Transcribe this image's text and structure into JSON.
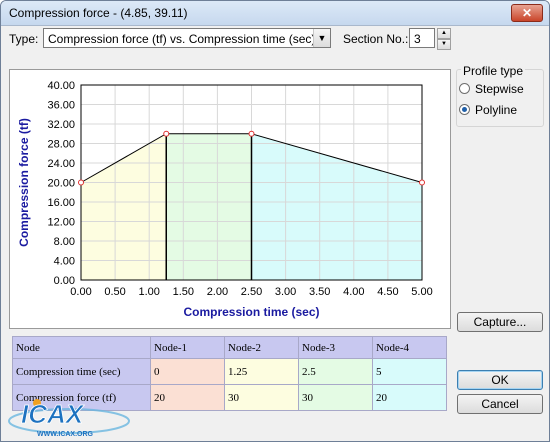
{
  "window": {
    "title": "Compression force - (4.85, 39.11)",
    "close_icon": "close-icon"
  },
  "toolbar": {
    "type_label": "Type:",
    "type_value": "Compression force (tf) vs. Compression time (sec)",
    "section_label": "Section No.:",
    "section_value": "3"
  },
  "profile": {
    "title": "Profile type",
    "options": [
      "Stepwise",
      "Polyline"
    ],
    "selected": "Polyline"
  },
  "buttons": {
    "capture": "Capture...",
    "ok": "OK",
    "cancel": "Cancel"
  },
  "table": {
    "headers": [
      "Node",
      "Node-1",
      "Node-2",
      "Node-3",
      "Node-4"
    ],
    "rows": [
      {
        "label": "Compression time (sec)",
        "values": [
          "0",
          "1.25",
          "2.5",
          "5"
        ]
      },
      {
        "label": "Compression force (tf)",
        "values": [
          "20",
          "30",
          "30",
          "20"
        ]
      }
    ]
  },
  "logo": {
    "text": "ICAX",
    "subtext": "WWW.ICAX.ORG"
  },
  "chart_data": {
    "type": "line",
    "xlabel": "Compression time (sec)",
    "ylabel": "Compression force (tf)",
    "xlim": [
      0,
      5
    ],
    "ylim": [
      0,
      40
    ],
    "xticks": [
      "0.00",
      "0.50",
      "1.00",
      "1.50",
      "2.00",
      "2.50",
      "3.00",
      "3.50",
      "4.00",
      "4.50",
      "5.00"
    ],
    "yticks": [
      "0.00",
      "4.00",
      "8.00",
      "12.00",
      "16.00",
      "20.00",
      "24.00",
      "28.00",
      "32.00",
      "36.00",
      "40.00"
    ],
    "grid": true,
    "series": [
      {
        "x": [
          0,
          1.25,
          2.5,
          5
        ],
        "y": [
          20,
          30,
          30,
          20
        ]
      }
    ],
    "region_colors": [
      "#fdfde0",
      "#e4fbe4",
      "#d8fbfb"
    ],
    "line_color": "#000000",
    "marker_color": "#e03030",
    "axis_label_color": "#1a1aa0"
  }
}
